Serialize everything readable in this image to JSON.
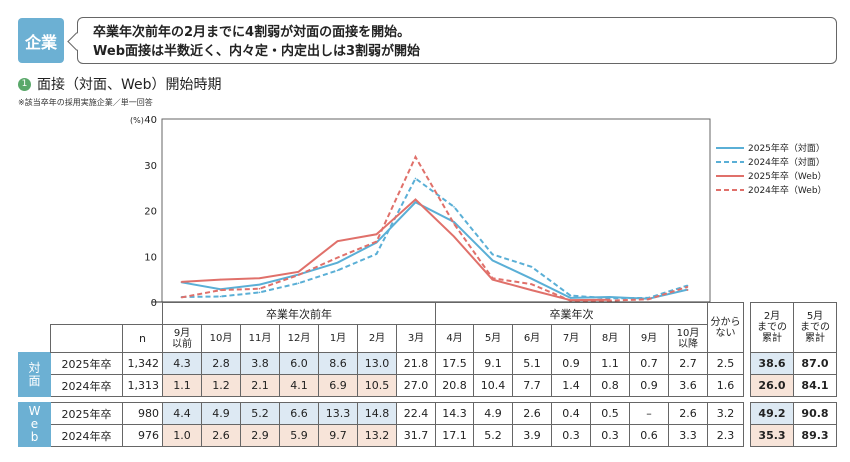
{
  "header": {
    "badge": "企業",
    "line1": "卒業年次前年の2月までに4割弱が対面の面接を開始。",
    "line2": "Web面接は半数近く、内々定・内定出しは3割弱が開始"
  },
  "section": {
    "number": "1",
    "title": "面接（対面、Web）開始時期",
    "note": "※該当卒年の採用実施企業／単一回答"
  },
  "chart_data": {
    "type": "line",
    "ylabel": "(%)",
    "ylim": [
      0,
      40
    ],
    "yticks": [
      "0",
      "10",
      "20",
      "30",
      "40"
    ],
    "categories": [
      "9月以前",
      "10月",
      "11月",
      "12月",
      "1月",
      "2月",
      "3月",
      "4月",
      "5月",
      "6月",
      "7月",
      "8月",
      "9月",
      "10月以降"
    ],
    "series": [
      {
        "name": "2025年卒（対面）",
        "color": "#5aafd6",
        "dash": false,
        "values": [
          4.3,
          2.8,
          3.8,
          6.0,
          8.6,
          13.0,
          21.8,
          17.5,
          9.1,
          5.1,
          0.9,
          1.1,
          0.7,
          2.7
        ]
      },
      {
        "name": "2024年卒（対面）",
        "color": "#5aafd6",
        "dash": true,
        "values": [
          1.1,
          1.2,
          2.1,
          4.1,
          6.9,
          10.5,
          27.0,
          20.8,
          10.4,
          7.7,
          1.4,
          0.8,
          0.9,
          3.6
        ]
      },
      {
        "name": "2025年卒（Web）",
        "color": "#e0706a",
        "dash": false,
        "values": [
          4.4,
          4.9,
          5.2,
          6.6,
          13.3,
          14.8,
          22.4,
          14.3,
          4.9,
          2.6,
          0.4,
          0.5,
          null,
          2.6
        ]
      },
      {
        "name": "2024年卒（Web）",
        "color": "#e0706a",
        "dash": true,
        "values": [
          1.0,
          2.6,
          2.9,
          5.9,
          9.7,
          13.2,
          31.7,
          17.1,
          5.2,
          3.9,
          0.3,
          0.3,
          0.6,
          3.3
        ]
      }
    ]
  },
  "table": {
    "unit": "(%)",
    "group_prev": "卒業年次前年",
    "group_curr": "卒業年次",
    "n_label": "n",
    "months": [
      "9月\n以前",
      "10月",
      "11月",
      "12月",
      "1月",
      "2月",
      "3月",
      "4月",
      "5月",
      "6月",
      "7月",
      "8月",
      "9月",
      "10月\n以降"
    ],
    "unknown": "分から\nない",
    "cum2": "2月\nまでの\n累計",
    "cum5": "5月\nまでの\n累計",
    "groups": [
      {
        "label": "対\n面",
        "rows": [
          {
            "year": "2025年卒",
            "n": "1,342",
            "vals": [
              "4.3",
              "2.8",
              "3.8",
              "6.0",
              "8.6",
              "13.0",
              "21.8",
              "17.5",
              "9.1",
              "5.1",
              "0.9",
              "1.1",
              "0.7",
              "2.7"
            ],
            "unknown": "2.5",
            "cum2": "38.6",
            "cum5": "87.0"
          },
          {
            "year": "2024年卒",
            "n": "1,313",
            "vals": [
              "1.1",
              "1.2",
              "2.1",
              "4.1",
              "6.9",
              "10.5",
              "27.0",
              "20.8",
              "10.4",
              "7.7",
              "1.4",
              "0.8",
              "0.9",
              "3.6"
            ],
            "unknown": "1.6",
            "cum2": "26.0",
            "cum5": "84.1"
          }
        ]
      },
      {
        "label": "W\ne\nb",
        "rows": [
          {
            "year": "2025年卒",
            "n": "980",
            "vals": [
              "4.4",
              "4.9",
              "5.2",
              "6.6",
              "13.3",
              "14.8",
              "22.4",
              "14.3",
              "4.9",
              "2.6",
              "0.4",
              "0.5",
              "–",
              "2.6"
            ],
            "unknown": "3.2",
            "cum2": "49.2",
            "cum5": "90.8"
          },
          {
            "year": "2024年卒",
            "n": "976",
            "vals": [
              "1.0",
              "2.6",
              "2.9",
              "5.9",
              "9.7",
              "13.2",
              "31.7",
              "17.1",
              "5.2",
              "3.9",
              "0.3",
              "0.3",
              "0.6",
              "3.3"
            ],
            "unknown": "2.3",
            "cum2": "35.3",
            "cum5": "89.3"
          }
        ]
      }
    ]
  }
}
